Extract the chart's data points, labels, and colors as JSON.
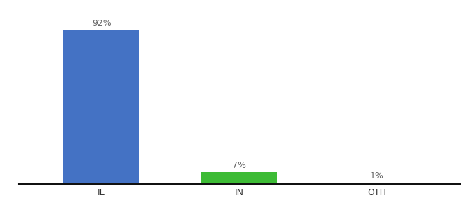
{
  "categories": [
    "IE",
    "IN",
    "OTH"
  ],
  "values": [
    92,
    7,
    1
  ],
  "bar_colors": [
    "#4472c4",
    "#3dbb35",
    "#f0a830"
  ],
  "labels": [
    "92%",
    "7%",
    "1%"
  ],
  "ylim": [
    0,
    100
  ],
  "background_color": "#ffffff",
  "label_fontsize": 9,
  "tick_fontsize": 9,
  "bar_width": 0.55,
  "x_positions": [
    0,
    1,
    2
  ]
}
